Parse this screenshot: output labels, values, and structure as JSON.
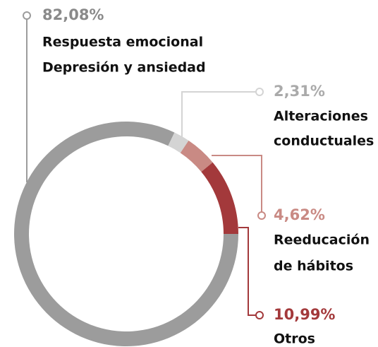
{
  "chart_data": {
    "type": "donut",
    "categories": [
      [
        "Respuesta emocional",
        "Depresión y ansiedad"
      ],
      [
        "Alteraciones",
        "conductuales"
      ],
      [
        "Reeducación",
        "de hábitos"
      ],
      [
        "Otros"
      ]
    ],
    "values": [
      82.08,
      2.31,
      4.62,
      10.99
    ],
    "value_labels": [
      "82,08%",
      "2,31%",
      "4,62%",
      "10,99%"
    ],
    "colors": [
      "#9c9c9c",
      "#d4d4d4",
      "#c98a84",
      "#a3393b"
    ]
  }
}
